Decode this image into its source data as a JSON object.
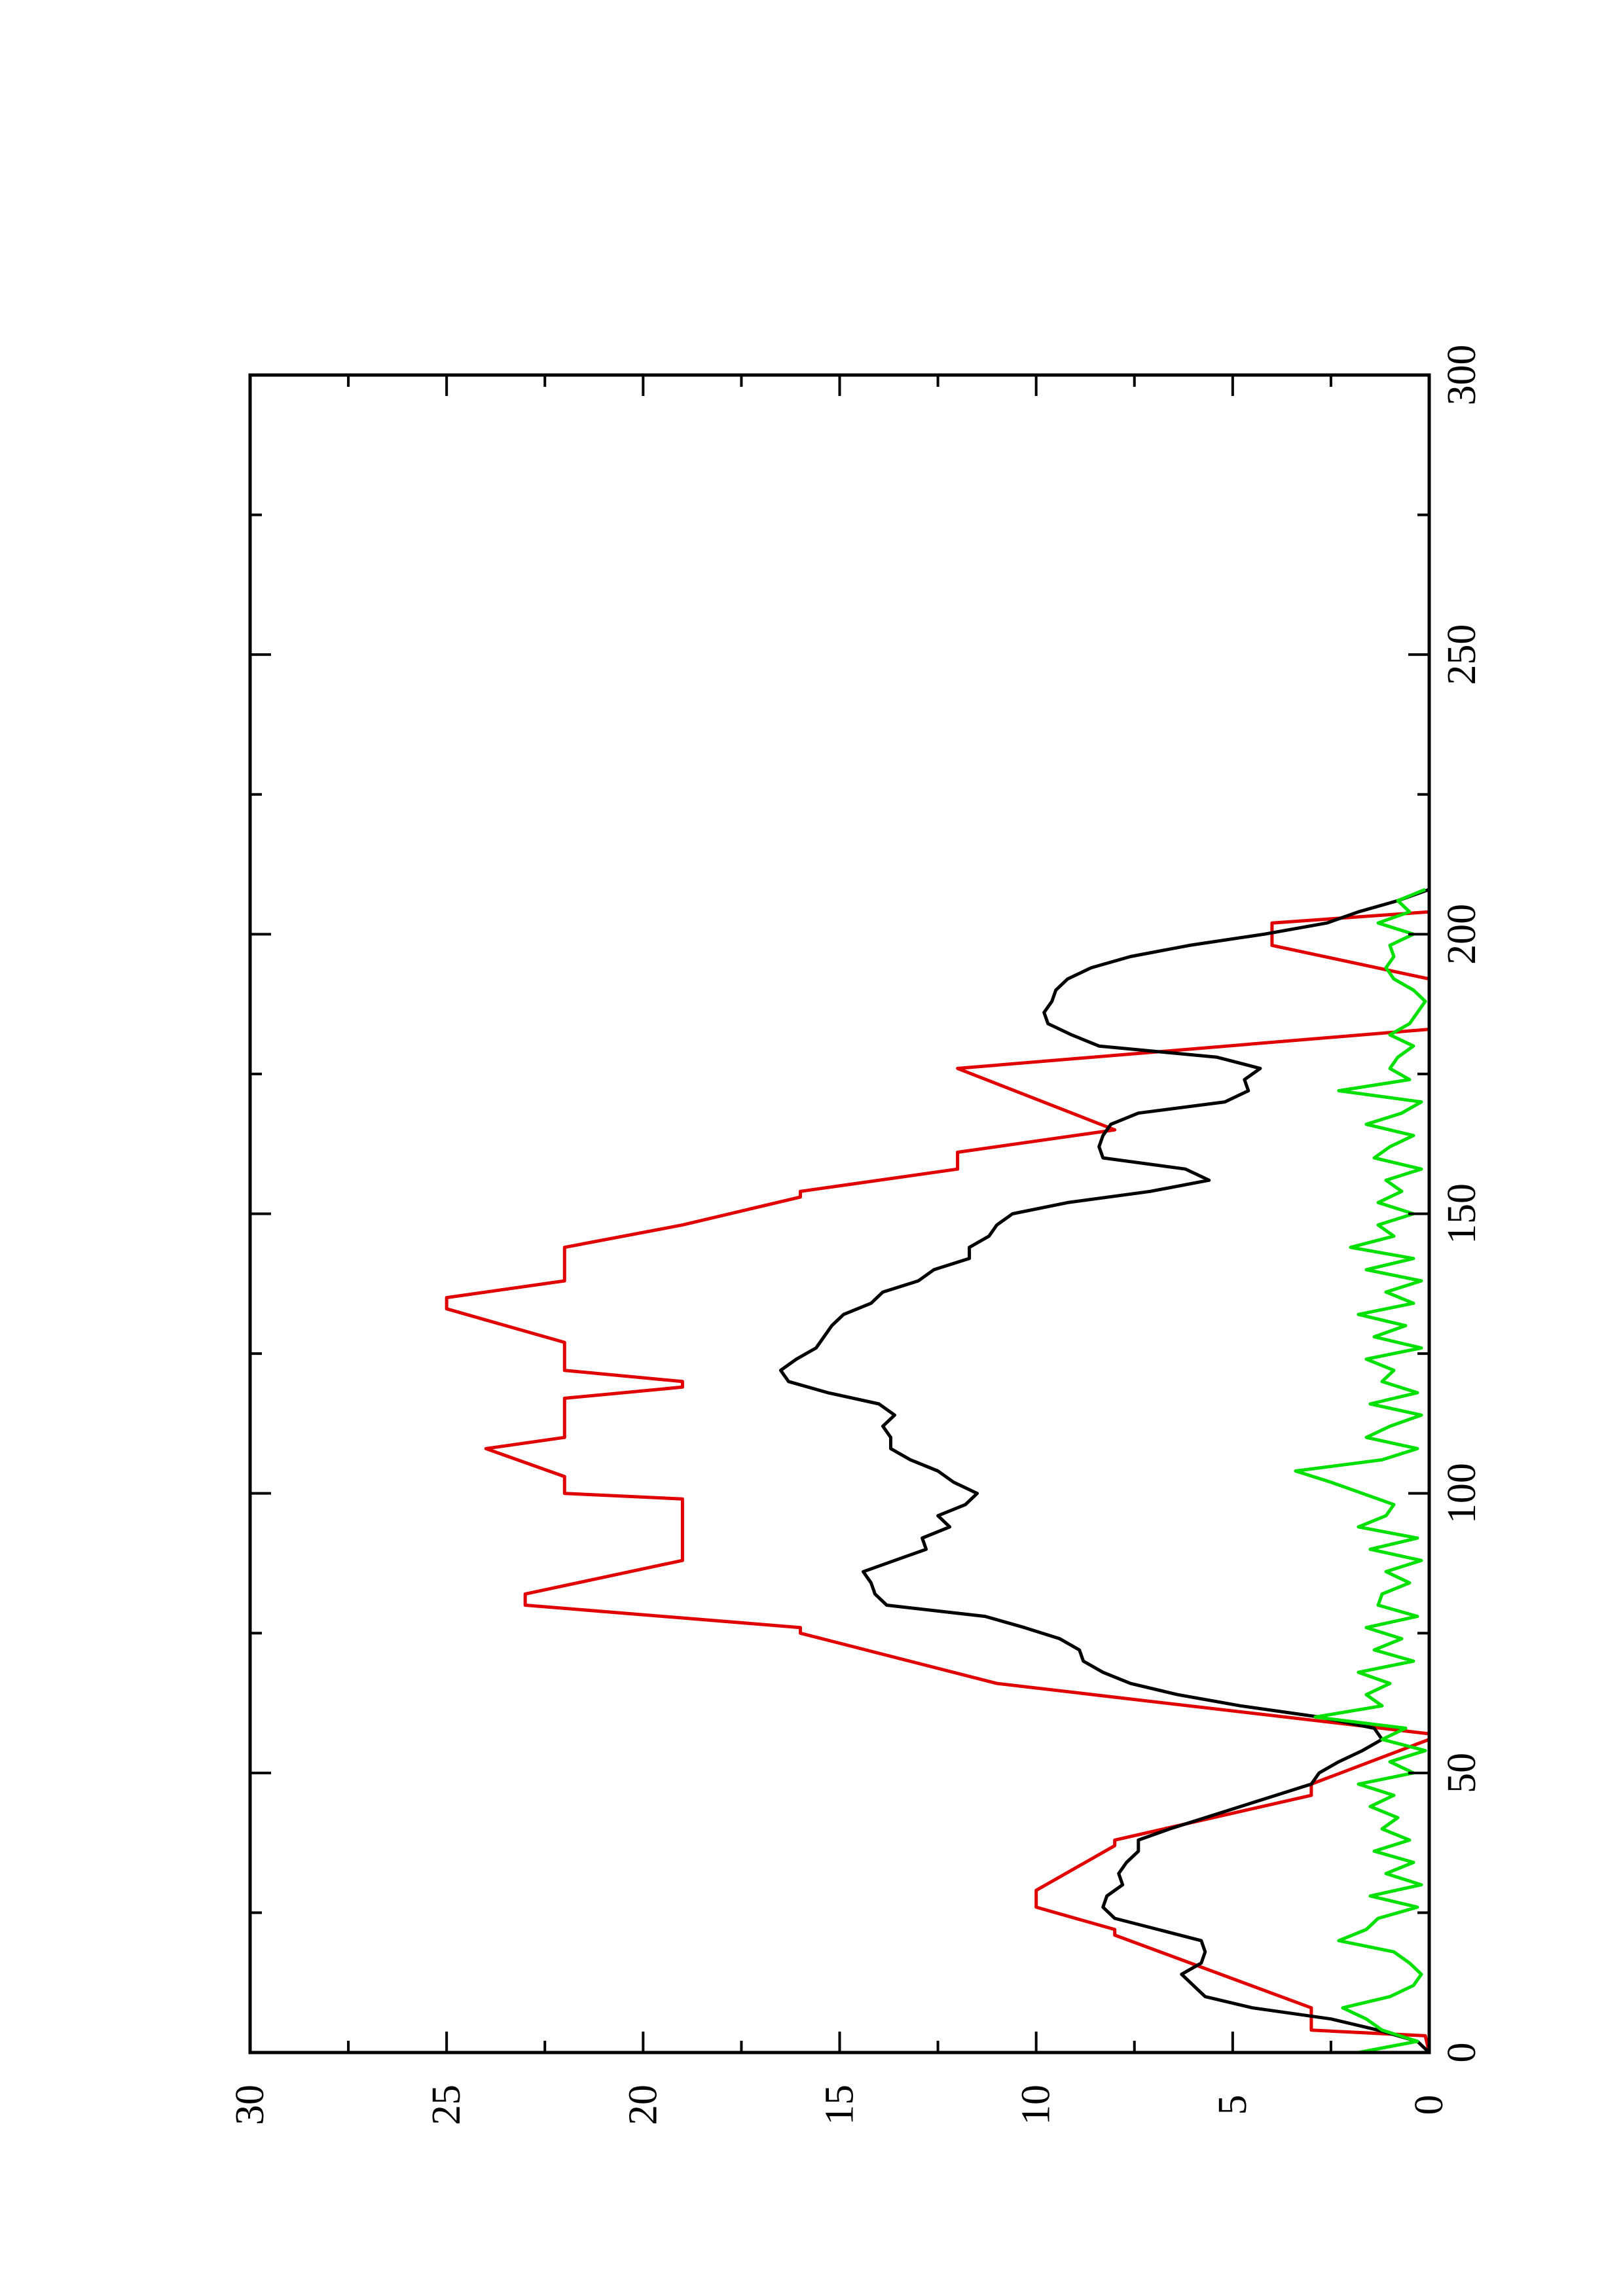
{
  "chart_data": {
    "type": "line",
    "orientation": "rotated-90-ccw",
    "title": "",
    "xlabel": "",
    "ylabel": "",
    "xlim": [
      0,
      300
    ],
    "ylim": [
      0,
      30
    ],
    "x_ticks": [
      0,
      50,
      100,
      150,
      200,
      250,
      300
    ],
    "y_ticks": [
      0,
      5,
      10,
      15,
      20,
      25,
      30
    ],
    "grid": false,
    "legend": "none",
    "series": [
      {
        "color": "#e00000",
        "x": [
          0,
          3,
          4,
          8,
          21,
          22,
          26,
          29,
          37,
          38,
          46,
          48,
          56,
          57,
          66,
          75,
          76,
          80,
          82,
          88,
          96,
          99,
          100,
          103,
          108,
          110,
          117,
          119,
          120,
          122,
          127,
          133,
          135,
          138,
          144,
          148,
          153,
          154,
          158,
          161,
          165,
          176,
          183,
          190,
          192,
          198,
          202,
          204,
          215
        ],
        "y": [
          0,
          0.1,
          3,
          3,
          8,
          8,
          10,
          10,
          8,
          8,
          3,
          3,
          0,
          0,
          11,
          16,
          16,
          23,
          23,
          19,
          19,
          19,
          22,
          22,
          24,
          22,
          22,
          19,
          19,
          22,
          22,
          25,
          25,
          22,
          22,
          19,
          16,
          16,
          12,
          12,
          8,
          12,
          0,
          0,
          0,
          4,
          4,
          0,
          0
        ]
      },
      {
        "color": "#000000",
        "x": [
          0,
          2,
          4,
          6,
          8,
          10,
          12,
          14,
          16,
          18,
          20,
          22,
          24,
          26,
          28,
          30,
          32,
          34,
          36,
          38,
          40,
          42,
          44,
          46,
          48,
          50,
          52,
          54,
          56,
          58,
          60,
          62,
          64,
          66,
          68,
          70,
          72,
          74,
          76,
          78,
          80,
          82,
          84,
          86,
          88,
          90,
          92,
          94,
          96,
          98,
          100,
          102,
          104,
          106,
          108,
          110,
          112,
          114,
          116,
          118,
          120,
          122,
          124,
          126,
          128,
          130,
          132,
          134,
          136,
          138,
          140,
          142,
          144,
          146,
          148,
          150,
          152,
          154,
          156,
          158,
          160,
          162,
          164,
          166,
          168,
          170,
          172,
          174,
          176,
          178,
          180,
          182,
          184,
          186,
          188,
          190,
          192,
          194,
          196,
          198,
          200,
          202,
          204,
          206,
          208
        ],
        "y": [
          0,
          0.3,
          1.3,
          2.5,
          4.5,
          5.7,
          6.0,
          6.3,
          5.8,
          5.7,
          5.8,
          6.9,
          8.0,
          8.3,
          8.2,
          7.8,
          7.9,
          7.7,
          7.4,
          7.4,
          6.6,
          5.7,
          4.8,
          3.9,
          3.0,
          2.8,
          2.3,
          1.7,
          1.2,
          1.4,
          2.8,
          4.8,
          6.4,
          7.6,
          8.3,
          8.8,
          8.9,
          9.4,
          10.3,
          11.3,
          13.8,
          14.1,
          14.2,
          14.4,
          13.6,
          12.8,
          12.9,
          12.2,
          12.5,
          11.8,
          11.5,
          12.1,
          12.5,
          13.2,
          13.7,
          13.7,
          13.9,
          13.6,
          14.0,
          15.3,
          16.3,
          16.5,
          16.1,
          15.6,
          15.4,
          15.2,
          14.9,
          14.2,
          13.9,
          13.0,
          12.6,
          11.7,
          11.7,
          11.2,
          11.0,
          10.6,
          9.2,
          7.1,
          5.6,
          6.2,
          8.3,
          8.4,
          8.3,
          8.1,
          7.4,
          5.2,
          4.6,
          4.7,
          4.3,
          5.4,
          8.4,
          9.1,
          9.7,
          9.8,
          9.6,
          9.5,
          9.2,
          8.6,
          7.6,
          6.1,
          4.2,
          2.6,
          1.8,
          0.8,
          0
        ]
      },
      {
        "color": "#00e000",
        "x": [
          0,
          2,
          4,
          6,
          8,
          10,
          12,
          14,
          16,
          18,
          20,
          22,
          24,
          26,
          28,
          30,
          32,
          34,
          36,
          38,
          40,
          42,
          44,
          46,
          48,
          50,
          52,
          54,
          56,
          58,
          60,
          62,
          64,
          66,
          68,
          70,
          72,
          74,
          76,
          78,
          80,
          82,
          84,
          86,
          88,
          90,
          92,
          94,
          96,
          98,
          100,
          102,
          104,
          106,
          108,
          110,
          112,
          114,
          116,
          118,
          120,
          122,
          124,
          126,
          128,
          130,
          132,
          134,
          136,
          138,
          140,
          142,
          144,
          146,
          148,
          150,
          152,
          154,
          156,
          158,
          160,
          162,
          164,
          166,
          168,
          170,
          172,
          174,
          176,
          178,
          180,
          182,
          184,
          186,
          188,
          190,
          192,
          194,
          196,
          198,
          200,
          202,
          204,
          206,
          208
        ],
        "y": [
          1.8,
          0.3,
          1.2,
          1.6,
          2.2,
          1.0,
          0.4,
          0.2,
          0.5,
          0.9,
          2.3,
          1.6,
          1.3,
          0.3,
          1.5,
          0.2,
          1.1,
          0.4,
          1.4,
          0.5,
          1.2,
          0.8,
          1.5,
          0.9,
          1.8,
          0.4,
          1.0,
          0.1,
          1.2,
          0.6,
          2.9,
          1.2,
          1.6,
          1.0,
          1.8,
          0.4,
          1.4,
          0.7,
          1.6,
          0.3,
          1.3,
          1.2,
          0.5,
          1.1,
          0.2,
          1.5,
          0.3,
          1.8,
          1.1,
          0.9,
          1.7,
          2.5,
          3.4,
          1.2,
          0.3,
          1.6,
          1.0,
          0.2,
          1.5,
          0.3,
          1.2,
          0.9,
          1.6,
          0.2,
          1.4,
          0.6,
          1.8,
          0.4,
          1.1,
          0.2,
          1.6,
          0.4,
          2.0,
          0.9,
          1.3,
          0.4,
          1.3,
          0.7,
          1.1,
          0.2,
          1.4,
          1.0,
          0.4,
          1.6,
          0.7,
          0.2,
          2.3,
          0.5,
          1.0,
          0.8,
          0.4,
          1.0,
          0.5,
          0.3,
          0.1,
          0.4,
          0.9,
          1.1,
          0.9,
          1.0,
          0.4,
          1.3,
          0.5,
          0.8,
          0.1
        ]
      }
    ]
  }
}
